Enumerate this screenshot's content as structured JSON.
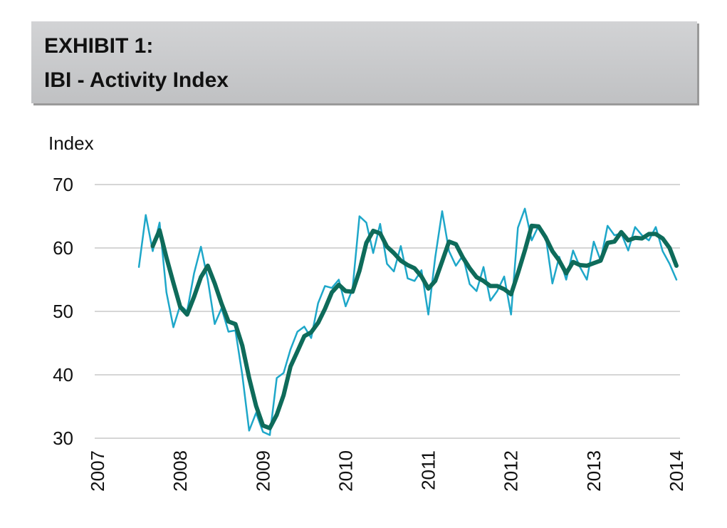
{
  "chart_data": {
    "type": "line",
    "title": "EXHIBIT 1:",
    "subtitle": "IBI - Activity Index",
    "y_label": "Index",
    "x": [
      2007.5,
      2007.583,
      2007.667,
      2007.75,
      2007.833,
      2007.917,
      2008,
      2008.083,
      2008.167,
      2008.25,
      2008.333,
      2008.417,
      2008.5,
      2008.583,
      2008.667,
      2008.75,
      2008.833,
      2008.917,
      2009,
      2009.083,
      2009.167,
      2009.25,
      2009.333,
      2009.417,
      2009.5,
      2009.583,
      2009.667,
      2009.75,
      2009.833,
      2009.917,
      2010,
      2010.083,
      2010.167,
      2010.25,
      2010.333,
      2010.417,
      2010.5,
      2010.583,
      2010.667,
      2010.75,
      2010.833,
      2010.917,
      2011,
      2011.083,
      2011.167,
      2011.25,
      2011.333,
      2011.417,
      2011.5,
      2011.583,
      2011.667,
      2011.75,
      2011.833,
      2011.917,
      2012,
      2012.083,
      2012.167,
      2012.25,
      2012.333,
      2012.417,
      2012.5,
      2012.583,
      2012.667,
      2012.75,
      2012.833,
      2012.917,
      2013,
      2013.083,
      2013.167,
      2013.25,
      2013.333,
      2013.417,
      2013.5,
      2013.583,
      2013.667,
      2013.75,
      2013.833,
      2013.917,
      2014
    ],
    "series": [
      {
        "color": "#1ea7c9",
        "width": 2.5,
        "values": [
          57,
          65.2,
          59.5,
          64,
          53,
          47.5,
          51,
          50,
          56,
          60.2,
          55,
          48,
          50.5,
          46.8,
          47,
          40,
          31.2,
          34,
          31,
          30.5,
          39.5,
          40.3,
          44,
          46.8,
          47.6,
          45.8,
          51.3,
          54,
          53.7,
          55,
          50.8,
          53.5,
          65,
          64,
          59.2,
          63.8,
          57.5,
          56.3,
          60.3,
          55.2,
          54.8,
          56.5,
          49.5,
          58.5,
          65.8,
          59.5,
          57.2,
          58.8,
          54.3,
          53.2,
          57,
          51.7,
          53.2,
          55.5,
          49.5,
          63.2,
          66.2,
          61.2,
          63.5,
          62,
          54.4,
          58.6,
          55,
          59.6,
          57,
          55,
          61,
          58,
          63.5,
          62,
          62.3,
          59.6,
          63.3,
          62,
          61.2,
          63.3,
          59.5,
          57.5,
          55
        ]
      },
      {
        "color": "#0e6b5a",
        "width": 6,
        "values": [
          null,
          null,
          60.3,
          62.8,
          58.5,
          54.5,
          50.7,
          49.5,
          52.3,
          55.4,
          57.2,
          54.4,
          51.2,
          48.4,
          48,
          44.6,
          39.5,
          35.1,
          32,
          31.6,
          33.7,
          36.8,
          41.3,
          43.7,
          46.1,
          46.7,
          48.2,
          50.4,
          53,
          54.2,
          53.2,
          53.1,
          56.4,
          60.8,
          62.7,
          62.3,
          60.2,
          59.2,
          58,
          57.3,
          56.8,
          55.5,
          53.6,
          54.8,
          57.9,
          61,
          60.6,
          58.5,
          56.8,
          55.4,
          54.8,
          54,
          54,
          53.5,
          52.7,
          56,
          59.6,
          63.5,
          63.4,
          61.7,
          59.5,
          58,
          56,
          57.8,
          57.3,
          57.2,
          57.6,
          58,
          60.8,
          61,
          62.5,
          61.2,
          61.6,
          61.5,
          62.2,
          62.2,
          61.5,
          60,
          57.2
        ]
      }
    ],
    "xlim": [
      2007,
      2014
    ],
    "xticks": [
      2007,
      2008,
      2009,
      2010,
      2011,
      2012,
      2013,
      2014
    ],
    "ylim": [
      30,
      70
    ],
    "yticks": [
      30,
      40,
      50,
      60,
      70
    ],
    "grid": true
  }
}
